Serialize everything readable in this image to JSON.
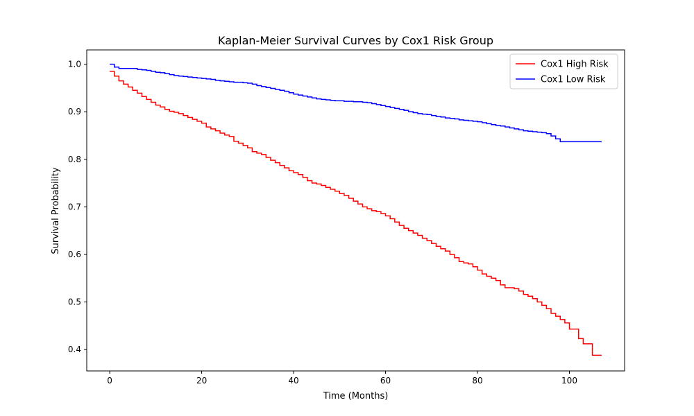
{
  "chart_data": {
    "type": "line",
    "step": true,
    "title": "Kaplan-Meier Survival Curves by Cox1 Risk Group",
    "xlabel": "Time (Months)",
    "ylabel": "Survival Probability",
    "xlim": [
      -5,
      112
    ],
    "ylim": [
      0.355,
      1.03
    ],
    "xticks": [
      0,
      20,
      40,
      60,
      80,
      100
    ],
    "yticks": [
      0.4,
      0.5,
      0.6,
      0.7,
      0.8,
      0.9,
      1.0
    ],
    "grid": false,
    "legend_position": "top-right",
    "series": [
      {
        "name": "Cox1 High Risk",
        "color": "#ff0000",
        "points": [
          [
            0,
            0.985
          ],
          [
            1,
            0.975
          ],
          [
            2,
            0.965
          ],
          [
            3,
            0.958
          ],
          [
            4,
            0.952
          ],
          [
            5,
            0.945
          ],
          [
            6,
            0.939
          ],
          [
            7,
            0.932
          ],
          [
            8,
            0.926
          ],
          [
            9,
            0.92
          ],
          [
            10,
            0.914
          ],
          [
            11,
            0.91
          ],
          [
            12,
            0.905
          ],
          [
            13,
            0.901
          ],
          [
            14,
            0.899
          ],
          [
            15,
            0.896
          ],
          [
            16,
            0.892
          ],
          [
            17,
            0.888
          ],
          [
            18,
            0.884
          ],
          [
            19,
            0.88
          ],
          [
            20,
            0.876
          ],
          [
            21,
            0.868
          ],
          [
            22,
            0.864
          ],
          [
            23,
            0.86
          ],
          [
            24,
            0.855
          ],
          [
            25,
            0.851
          ],
          [
            26,
            0.848
          ],
          [
            27,
            0.838
          ],
          [
            28,
            0.834
          ],
          [
            29,
            0.829
          ],
          [
            30,
            0.824
          ],
          [
            31,
            0.816
          ],
          [
            32,
            0.813
          ],
          [
            33,
            0.81
          ],
          [
            34,
            0.804
          ],
          [
            35,
            0.798
          ],
          [
            36,
            0.793
          ],
          [
            37,
            0.787
          ],
          [
            38,
            0.782
          ],
          [
            39,
            0.776
          ],
          [
            40,
            0.772
          ],
          [
            41,
            0.768
          ],
          [
            42,
            0.762
          ],
          [
            43,
            0.755
          ],
          [
            44,
            0.75
          ],
          [
            45,
            0.748
          ],
          [
            46,
            0.745
          ],
          [
            47,
            0.741
          ],
          [
            48,
            0.737
          ],
          [
            49,
            0.733
          ],
          [
            50,
            0.728
          ],
          [
            51,
            0.724
          ],
          [
            52,
            0.718
          ],
          [
            53,
            0.712
          ],
          [
            54,
            0.706
          ],
          [
            55,
            0.7
          ],
          [
            56,
            0.696
          ],
          [
            57,
            0.692
          ],
          [
            58,
            0.69
          ],
          [
            59,
            0.686
          ],
          [
            60,
            0.681
          ],
          [
            61,
            0.675
          ],
          [
            62,
            0.668
          ],
          [
            63,
            0.661
          ],
          [
            64,
            0.655
          ],
          [
            65,
            0.65
          ],
          [
            66,
            0.645
          ],
          [
            67,
            0.64
          ],
          [
            68,
            0.634
          ],
          [
            69,
            0.629
          ],
          [
            70,
            0.623
          ],
          [
            71,
            0.617
          ],
          [
            72,
            0.612
          ],
          [
            73,
            0.607
          ],
          [
            74,
            0.6
          ],
          [
            75,
            0.593
          ],
          [
            76,
            0.585
          ],
          [
            77,
            0.582
          ],
          [
            78,
            0.58
          ],
          [
            79,
            0.574
          ],
          [
            80,
            0.567
          ],
          [
            81,
            0.559
          ],
          [
            82,
            0.554
          ],
          [
            83,
            0.55
          ],
          [
            84,
            0.545
          ],
          [
            85,
            0.536
          ],
          [
            86,
            0.53
          ],
          [
            87,
            0.53
          ],
          [
            88,
            0.528
          ],
          [
            89,
            0.523
          ],
          [
            90,
            0.516
          ],
          [
            91,
            0.512
          ],
          [
            92,
            0.507
          ],
          [
            93,
            0.5
          ],
          [
            94,
            0.493
          ],
          [
            95,
            0.486
          ],
          [
            96,
            0.476
          ],
          [
            97,
            0.47
          ],
          [
            98,
            0.463
          ],
          [
            99,
            0.456
          ],
          [
            100,
            0.443
          ],
          [
            101,
            0.443
          ],
          [
            102,
            0.423
          ],
          [
            103,
            0.412
          ],
          [
            104,
            0.412
          ],
          [
            105,
            0.388
          ],
          [
            107,
            0.388
          ]
        ]
      },
      {
        "name": "Cox1 Low Risk",
        "color": "#0000ff",
        "points": [
          [
            0,
            1.0
          ],
          [
            1,
            0.994
          ],
          [
            2,
            0.991
          ],
          [
            3,
            0.991
          ],
          [
            4,
            0.991
          ],
          [
            5,
            0.991
          ],
          [
            6,
            0.989
          ],
          [
            7,
            0.988
          ],
          [
            8,
            0.987
          ],
          [
            9,
            0.985
          ],
          [
            10,
            0.983
          ],
          [
            11,
            0.982
          ],
          [
            12,
            0.98
          ],
          [
            13,
            0.978
          ],
          [
            14,
            0.976
          ],
          [
            15,
            0.975
          ],
          [
            16,
            0.974
          ],
          [
            17,
            0.973
          ],
          [
            18,
            0.972
          ],
          [
            19,
            0.971
          ],
          [
            20,
            0.97
          ],
          [
            21,
            0.969
          ],
          [
            22,
            0.968
          ],
          [
            23,
            0.966
          ],
          [
            24,
            0.965
          ],
          [
            25,
            0.964
          ],
          [
            26,
            0.963
          ],
          [
            27,
            0.962
          ],
          [
            28,
            0.962
          ],
          [
            29,
            0.961
          ],
          [
            30,
            0.96
          ],
          [
            31,
            0.958
          ],
          [
            32,
            0.955
          ],
          [
            33,
            0.953
          ],
          [
            34,
            0.951
          ],
          [
            35,
            0.949
          ],
          [
            36,
            0.947
          ],
          [
            37,
            0.945
          ],
          [
            38,
            0.943
          ],
          [
            39,
            0.94
          ],
          [
            40,
            0.937
          ],
          [
            41,
            0.935
          ],
          [
            42,
            0.933
          ],
          [
            43,
            0.931
          ],
          [
            44,
            0.929
          ],
          [
            45,
            0.927
          ],
          [
            46,
            0.926
          ],
          [
            47,
            0.925
          ],
          [
            48,
            0.924
          ],
          [
            49,
            0.923
          ],
          [
            50,
            0.923
          ],
          [
            51,
            0.922
          ],
          [
            52,
            0.922
          ],
          [
            53,
            0.921
          ],
          [
            54,
            0.921
          ],
          [
            55,
            0.92
          ],
          [
            56,
            0.919
          ],
          [
            57,
            0.917
          ],
          [
            58,
            0.915
          ],
          [
            59,
            0.913
          ],
          [
            60,
            0.911
          ],
          [
            61,
            0.909
          ],
          [
            62,
            0.907
          ],
          [
            63,
            0.905
          ],
          [
            64,
            0.903
          ],
          [
            65,
            0.9
          ],
          [
            66,
            0.898
          ],
          [
            67,
            0.896
          ],
          [
            68,
            0.895
          ],
          [
            69,
            0.894
          ],
          [
            70,
            0.892
          ],
          [
            71,
            0.89
          ],
          [
            72,
            0.889
          ],
          [
            73,
            0.887
          ],
          [
            74,
            0.886
          ],
          [
            75,
            0.885
          ],
          [
            76,
            0.883
          ],
          [
            77,
            0.882
          ],
          [
            78,
            0.881
          ],
          [
            79,
            0.88
          ],
          [
            80,
            0.879
          ],
          [
            81,
            0.877
          ],
          [
            82,
            0.875
          ],
          [
            83,
            0.873
          ],
          [
            84,
            0.871
          ],
          [
            85,
            0.87
          ],
          [
            86,
            0.868
          ],
          [
            87,
            0.866
          ],
          [
            88,
            0.864
          ],
          [
            89,
            0.862
          ],
          [
            90,
            0.86
          ],
          [
            91,
            0.859
          ],
          [
            92,
            0.858
          ],
          [
            93,
            0.857
          ],
          [
            94,
            0.856
          ],
          [
            95,
            0.854
          ],
          [
            96,
            0.849
          ],
          [
            97,
            0.843
          ],
          [
            98,
            0.837
          ],
          [
            100,
            0.837
          ],
          [
            107,
            0.837
          ]
        ]
      }
    ]
  }
}
